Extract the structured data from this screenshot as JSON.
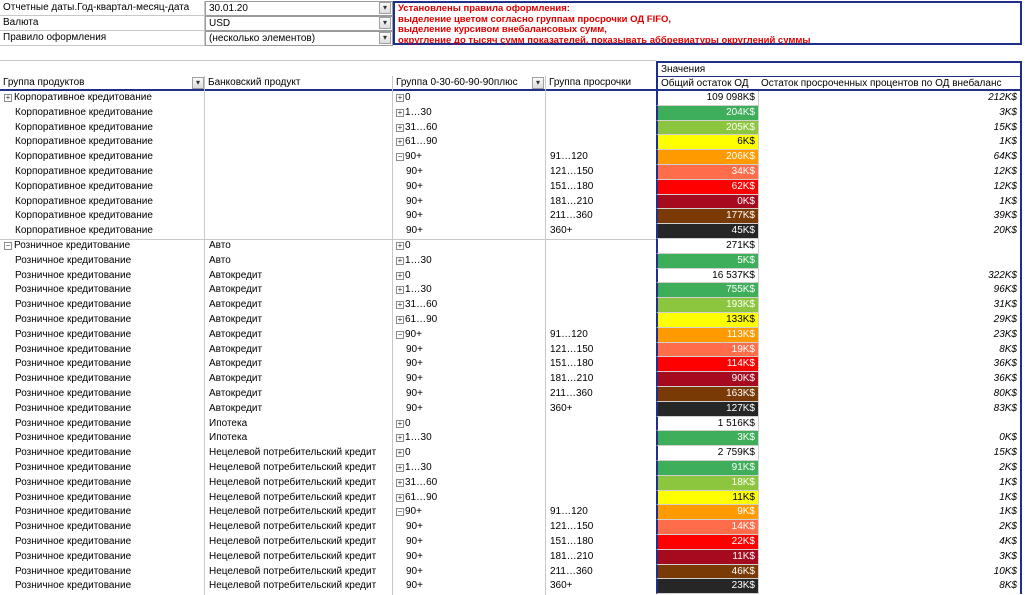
{
  "filters": [
    {
      "label": "Отчетные даты.Год-квартал-месяц-дата",
      "value": "30.01.20"
    },
    {
      "label": "Валюта",
      "value": "USD"
    },
    {
      "label": "Правило оформления",
      "value": "(несколько элементов)"
    }
  ],
  "note": [
    "Установлены правила оформления:",
    "выделение цветом согласно группам просрочки ОД FIFO,",
    "выделение курсивом внебалансовых сумм,",
    "округление до тысяч сумм показателей,   показывать аббревиатуры округлений суммы"
  ],
  "values_header": "Значения",
  "columns": [
    "Группа продуктов",
    "Банковский продукт",
    "Группа 0-30-60-90-90плюс",
    "Группа просрочки",
    "Общий остаток ОД",
    "Остаток просроченных процентов по ОД внебаланс"
  ],
  "rows": [
    {
      "group": "Корпоративное кредитование",
      "group_expander": "collapsed",
      "bucket": "0",
      "expander": "collapsed",
      "od": "109 098K$",
      "interest": "212K$"
    },
    {
      "group": "Корпоративное кредитование",
      "bucket": "1…30",
      "expander": "collapsed",
      "od": "204K$",
      "interest": "3K$",
      "fill": "#3fae5a"
    },
    {
      "group": "Корпоративное кредитование",
      "bucket": "31…60",
      "expander": "collapsed",
      "od": "205K$",
      "interest": "15K$",
      "fill": "#8cc63e"
    },
    {
      "group": "Корпоративное кредитование",
      "bucket": "61…90",
      "expander": "collapsed",
      "od": "6K$",
      "interest": "1K$",
      "fill": "#ffff00"
    },
    {
      "group": "Корпоративное кредитование",
      "bucket": "90+",
      "expander": "expanded",
      "subgroup": "91…120",
      "od": "206K$",
      "interest": "64K$",
      "fill": "#ff9a00"
    },
    {
      "group": "Корпоративное кредитование",
      "bucket": "90+",
      "subgroup": "121…150",
      "od": "34K$",
      "interest": "12K$",
      "fill": "#ff6d4a"
    },
    {
      "group": "Корпоративное кредитование",
      "bucket": "90+",
      "subgroup": "151…180",
      "od": "62K$",
      "interest": "12K$",
      "fill": "#ff0000"
    },
    {
      "group": "Корпоративное кредитование",
      "bucket": "90+",
      "subgroup": "181…210",
      "od": "0K$",
      "interest": "1K$",
      "fill": "#a50a1e"
    },
    {
      "group": "Корпоративное кредитование",
      "bucket": "90+",
      "subgroup": "211…360",
      "od": "177K$",
      "interest": "39K$",
      "fill": "#7a3a06"
    },
    {
      "group": "Корпоративное кредитование",
      "bucket": "90+",
      "subgroup": "360+",
      "od": "45K$",
      "interest": "20K$",
      "fill": "#262626"
    },
    {
      "group": "Розничное кредитование",
      "group_expander": "expanded",
      "product": "Авто",
      "bucket": "0",
      "expander": "collapsed",
      "od": "271K$"
    },
    {
      "group": "Розничное кредитование",
      "product": "Авто",
      "bucket": "1…30",
      "expander": "collapsed",
      "od": "5K$",
      "fill": "#3fae5a"
    },
    {
      "group": "Розничное кредитование",
      "product": "Автокредит",
      "bucket": "0",
      "expander": "collapsed",
      "od": "16 537K$",
      "interest": "322K$"
    },
    {
      "group": "Розничное кредитование",
      "product": "Автокредит",
      "bucket": "1…30",
      "expander": "collapsed",
      "od": "755K$",
      "interest": "96K$",
      "fill": "#3fae5a"
    },
    {
      "group": "Розничное кредитование",
      "product": "Автокредит",
      "bucket": "31…60",
      "expander": "collapsed",
      "od": "193K$",
      "interest": "31K$",
      "fill": "#8cc63e"
    },
    {
      "group": "Розничное кредитование",
      "product": "Автокредит",
      "bucket": "61…90",
      "expander": "collapsed",
      "od": "133K$",
      "interest": "29K$",
      "fill": "#ffff00"
    },
    {
      "group": "Розничное кредитование",
      "product": "Автокредит",
      "bucket": "90+",
      "expander": "expanded",
      "subgroup": "91…120",
      "od": "113K$",
      "interest": "23K$",
      "fill": "#ff9a00"
    },
    {
      "group": "Розничное кредитование",
      "product": "Автокредит",
      "bucket": "90+",
      "subgroup": "121…150",
      "od": "19K$",
      "interest": "8K$",
      "fill": "#ff6d4a"
    },
    {
      "group": "Розничное кредитование",
      "product": "Автокредит",
      "bucket": "90+",
      "subgroup": "151…180",
      "od": "114K$",
      "interest": "36K$",
      "fill": "#ff0000"
    },
    {
      "group": "Розничное кредитование",
      "product": "Автокредит",
      "bucket": "90+",
      "subgroup": "181…210",
      "od": "90K$",
      "interest": "36K$",
      "fill": "#a50a1e"
    },
    {
      "group": "Розничное кредитование",
      "product": "Автокредит",
      "bucket": "90+",
      "subgroup": "211…360",
      "od": "163K$",
      "interest": "80K$",
      "fill": "#7a3a06"
    },
    {
      "group": "Розничное кредитование",
      "product": "Автокредит",
      "bucket": "90+",
      "subgroup": "360+",
      "od": "127K$",
      "interest": "83K$",
      "fill": "#262626"
    },
    {
      "group": "Розничное кредитование",
      "product": "Ипотека",
      "bucket": "0",
      "expander": "collapsed",
      "od": "1 516K$"
    },
    {
      "group": "Розничное кредитование",
      "product": "Ипотека",
      "bucket": "1…30",
      "expander": "collapsed",
      "od": "3K$",
      "interest": "0K$",
      "fill": "#3fae5a"
    },
    {
      "group": "Розничное кредитование",
      "product": "Нецелевой потребительский кредит",
      "bucket": "0",
      "expander": "collapsed",
      "od": "2 759K$",
      "interest": "15K$"
    },
    {
      "group": "Розничное кредитование",
      "product": "Нецелевой потребительский кредит",
      "bucket": "1…30",
      "expander": "collapsed",
      "od": "91K$",
      "interest": "2K$",
      "fill": "#3fae5a"
    },
    {
      "group": "Розничное кредитование",
      "product": "Нецелевой потребительский кредит",
      "bucket": "31…60",
      "expander": "collapsed",
      "od": "18K$",
      "interest": "1K$",
      "fill": "#8cc63e"
    },
    {
      "group": "Розничное кредитование",
      "product": "Нецелевой потребительский кредит",
      "bucket": "61…90",
      "expander": "collapsed",
      "od": "11K$",
      "interest": "1K$",
      "fill": "#ffff00"
    },
    {
      "group": "Розничное кредитование",
      "product": "Нецелевой потребительский кредит",
      "bucket": "90+",
      "expander": "expanded",
      "subgroup": "91…120",
      "od": "9K$",
      "interest": "1K$",
      "fill": "#ff9a00"
    },
    {
      "group": "Розничное кредитование",
      "product": "Нецелевой потребительский кредит",
      "bucket": "90+",
      "subgroup": "121…150",
      "od": "14K$",
      "interest": "2K$",
      "fill": "#ff6d4a"
    },
    {
      "group": "Розничное кредитование",
      "product": "Нецелевой потребительский кредит",
      "bucket": "90+",
      "subgroup": "151…180",
      "od": "22K$",
      "interest": "4K$",
      "fill": "#ff0000"
    },
    {
      "group": "Розничное кредитование",
      "product": "Нецелевой потребительский кредит",
      "bucket": "90+",
      "subgroup": "181…210",
      "od": "11K$",
      "interest": "3K$",
      "fill": "#a50a1e"
    },
    {
      "group": "Розничное кредитование",
      "product": "Нецелевой потребительский кредит",
      "bucket": "90+",
      "subgroup": "211…360",
      "od": "46K$",
      "interest": "10K$",
      "fill": "#7a3a06"
    },
    {
      "group": "Розничное кредитование",
      "product": "Нецелевой потребительский кредит",
      "bucket": "90+",
      "subgroup": "360+",
      "od": "23K$",
      "interest": "8K$",
      "fill": "#262626"
    }
  ]
}
